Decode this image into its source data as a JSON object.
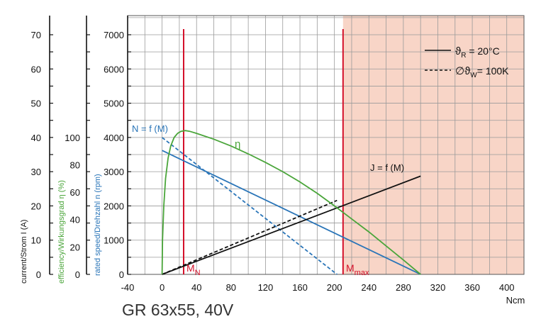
{
  "chart_data": {
    "type": "line",
    "subtitle": "GR 63x55, 40V",
    "x_unit": "Ncm",
    "x_ticks": [
      -40,
      0,
      40,
      80,
      120,
      160,
      200,
      240,
      280,
      320,
      360,
      400
    ],
    "xlim": [
      -40,
      420
    ],
    "speed_axis": {
      "label": "rated speed/Drehzahl n (rpm)",
      "ticks": [
        0,
        1000,
        2000,
        3000,
        4000,
        5000,
        6000,
        7000
      ],
      "range": [
        0,
        7000
      ]
    },
    "efficiency_axis": {
      "label": "efficiency/Wirkungsgrad η (%)",
      "ticks": [
        0,
        20,
        40,
        60,
        80,
        100
      ]
    },
    "current_axis": {
      "label": "current/Strom I (A)",
      "ticks": [
        0,
        10,
        20,
        30,
        40,
        50,
        60,
        70
      ]
    },
    "grid": true,
    "overload_region": {
      "from_x": 210,
      "color": "#f8d5c7"
    },
    "legend": [
      {
        "symbol": "ϑ",
        "sub": "R",
        "text": " = 20°C",
        "style": "solid"
      },
      {
        "symbol": "∅ϑ",
        "sub": "W",
        "text": "= 100K",
        "style": "dashed"
      }
    ],
    "markers": [
      {
        "label": "M",
        "sub": "N",
        "x": 25
      },
      {
        "label": "M",
        "sub": "max",
        "x": 210
      }
    ],
    "curve_labels": {
      "speed": "N = f (M)",
      "efficiency": "η",
      "current": "J = f (M)"
    },
    "series": [
      {
        "key": "speed",
        "style": "solid",
        "color": "#2a75b8",
        "axis": "speed",
        "x": [
          0,
          300
        ],
        "y": [
          3620,
          0
        ]
      },
      {
        "key": "speed",
        "style": "dashed",
        "color": "#2a75b8",
        "axis": "speed",
        "x": [
          0,
          203
        ],
        "y": [
          4000,
          0
        ]
      },
      {
        "key": "current",
        "style": "solid",
        "color": "#111111",
        "axis": "speed",
        "x": [
          0,
          300
        ],
        "y": [
          0,
          2870
        ]
      },
      {
        "key": "current",
        "style": "dashed",
        "color": "#111111",
        "axis": "speed",
        "x": [
          0,
          203
        ],
        "y": [
          0,
          2160
        ]
      },
      {
        "key": "efficiency",
        "style": "solid",
        "color": "#4aa53a",
        "axis": "speed",
        "x": [
          0,
          0.5,
          2,
          4,
          7,
          10,
          14,
          18,
          22,
          27,
          32,
          40,
          60,
          80,
          100,
          120,
          140,
          160,
          180,
          200,
          220,
          240,
          260,
          280,
          300
        ],
        "y": [
          0,
          1000,
          2000,
          2800,
          3400,
          3750,
          4000,
          4120,
          4180,
          4200,
          4180,
          4120,
          3950,
          3750,
          3520,
          3270,
          3000,
          2700,
          2370,
          2000,
          1620,
          1240,
          830,
          420,
          0
        ]
      }
    ]
  }
}
